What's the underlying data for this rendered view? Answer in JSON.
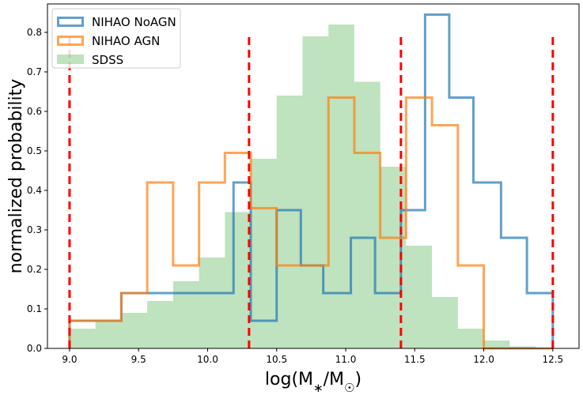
{
  "chart_data": {
    "type": "histogram",
    "xlabel": "log(M$_*$/M$_\\odot$)",
    "ylabel": "normalized probability",
    "xlim": [
      8.84,
      12.69
    ],
    "ylim": [
      0.0,
      0.872
    ],
    "xticks": [
      9.0,
      9.5,
      10.0,
      10.5,
      11.0,
      11.5,
      12.0,
      12.5
    ],
    "xtick_labels": [
      "9.0",
      "9.5",
      "10.0",
      "10.5",
      "11.0",
      "11.5",
      "12.0",
      "12.5"
    ],
    "yticks": [
      0.0,
      0.1,
      0.2,
      0.3,
      0.4,
      0.5,
      0.6,
      0.7,
      0.8
    ],
    "ytick_labels": [
      "0.0",
      "0.1",
      "0.2",
      "0.3",
      "0.4",
      "0.5",
      "0.6",
      "0.7",
      "0.8"
    ],
    "legend_position": "top-left",
    "series": [
      {
        "name": "NIHAO NoAGN",
        "style": "step",
        "color": "#1f77b4",
        "edges": [
          9.0,
          9.375,
          10.1875,
          10.3125,
          10.5,
          10.675,
          10.8375,
          11.0375,
          11.2125,
          11.4,
          11.575,
          11.75,
          11.925,
          12.125,
          12.3125,
          12.5
        ],
        "values": [
          0.07,
          0.14,
          0.42,
          0.07,
          0.35,
          0.21,
          0.14,
          0.28,
          0.14,
          0.35,
          0.845,
          0.635,
          0.42,
          0.28,
          0.14
        ]
      },
      {
        "name": "NIHAO AGN",
        "style": "step",
        "color": "#ff7f0e",
        "edges": [
          9.0,
          9.1875,
          9.375,
          9.5625,
          9.75,
          9.9375,
          10.125,
          10.3125,
          10.5,
          10.6875,
          10.875,
          11.0625,
          11.25,
          11.4375,
          11.625,
          11.8125,
          12.0,
          12.1875,
          12.375,
          12.5
        ],
        "values": [
          0.07,
          0.07,
          0.14,
          0.42,
          0.21,
          0.42,
          0.495,
          0.355,
          0.21,
          0.21,
          0.635,
          0.495,
          0.28,
          0.635,
          0.565,
          0.21,
          0.0,
          0.0,
          0.0
        ]
      },
      {
        "name": "SDSS",
        "style": "bar",
        "color": "#2ca02c",
        "edges": [
          9.0,
          9.1875,
          9.375,
          9.5625,
          9.75,
          9.9375,
          10.125,
          10.3125,
          10.5,
          10.6875,
          10.875,
          11.0625,
          11.25,
          11.4375,
          11.625,
          11.8125,
          12.0,
          12.1875,
          12.375,
          12.5
        ],
        "values": [
          0.05,
          0.07,
          0.09,
          0.12,
          0.17,
          0.23,
          0.345,
          0.48,
          0.64,
          0.79,
          0.82,
          0.675,
          0.46,
          0.26,
          0.13,
          0.05,
          0.02,
          0.005,
          0.0
        ]
      }
    ],
    "vertical_lines": {
      "color": "#ff0000",
      "style": "dashed",
      "x": [
        9.0,
        10.3,
        11.4,
        12.5
      ],
      "ymax": 0.8
    }
  }
}
